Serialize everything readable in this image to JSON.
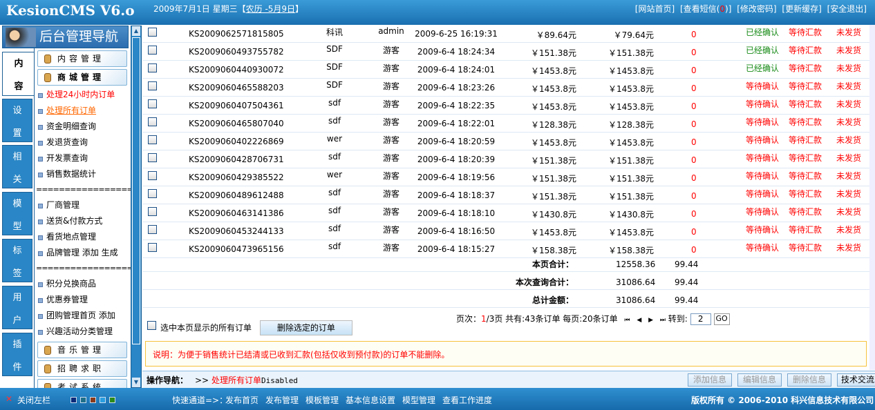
{
  "header": {
    "logo": "KesionCMS V6.o",
    "date": "2009年7月1日 星期三【",
    "lunar": "农历 -5月9日",
    "date_end": "】",
    "links": [
      {
        "pre": "[网站首页]"
      },
      {
        "pre": "[查看短信(",
        "count": "0",
        "post": ")]"
      },
      {
        "pre": "[修改密码]"
      },
      {
        "pre": "[更新缓存]"
      },
      {
        "pre": "[安全退出]"
      }
    ]
  },
  "sidebar": {
    "title": "后台管理导航",
    "tabs": [
      {
        "l1": "内",
        "l2": "容"
      },
      {
        "l1": "设",
        "l2": "置"
      },
      {
        "l1": "相",
        "l2": "关"
      },
      {
        "l1": "模",
        "l2": "型"
      },
      {
        "l1": "标",
        "l2": "签"
      },
      {
        "l1": "用",
        "l2": "户"
      },
      {
        "l1": "插",
        "l2": "件"
      }
    ],
    "groups": [
      "内容管理",
      "商城管理",
      "音乐管理",
      "招聘求职",
      "考试系统"
    ],
    "items": [
      "处理24小时内订单",
      "处理所有订单",
      "资金明细查询",
      "发退货查询",
      "开发票查询",
      "销售数据统计",
      "===================",
      "厂商管理",
      "送货&付款方式",
      "看货地点管理",
      "品牌管理 添加 生成",
      "===================",
      "积分兑换商品",
      "优惠券管理",
      "团购管理首页 添加",
      "兴趣活动分类管理"
    ]
  },
  "orders": [
    {
      "id": "KS2009062571815805",
      "buyer": "科讯",
      "user": "admin",
      "time": "2009-6-25 16:19:31",
      "amount": "￥89.64元",
      "paid": "￥79.64元",
      "points": "0",
      "confirm": "已经确认",
      "payment": "等待汇款",
      "ship": "未发货"
    },
    {
      "id": "KS2009060493755782",
      "buyer": "SDF",
      "user": "游客",
      "time": "2009-6-4 18:24:34",
      "amount": "￥151.38元",
      "paid": "￥151.38元",
      "points": "0",
      "confirm": "已经确认",
      "payment": "等待汇款",
      "ship": "未发货"
    },
    {
      "id": "KS2009060440930072",
      "buyer": "SDF",
      "user": "游客",
      "time": "2009-6-4 18:24:01",
      "amount": "￥1453.8元",
      "paid": "￥1453.8元",
      "points": "0",
      "confirm": "已经确认",
      "payment": "等待汇款",
      "ship": "未发货"
    },
    {
      "id": "KS2009060465588203",
      "buyer": "SDF",
      "user": "游客",
      "time": "2009-6-4 18:23:26",
      "amount": "￥1453.8元",
      "paid": "￥1453.8元",
      "points": "0",
      "confirm": "等待确认",
      "payment": "等待汇款",
      "ship": "未发货"
    },
    {
      "id": "KS2009060407504361",
      "buyer": "sdf",
      "user": "游客",
      "time": "2009-6-4 18:22:35",
      "amount": "￥1453.8元",
      "paid": "￥1453.8元",
      "points": "0",
      "confirm": "等待确认",
      "payment": "等待汇款",
      "ship": "未发货"
    },
    {
      "id": "KS2009060465807040",
      "buyer": "sdf",
      "user": "游客",
      "time": "2009-6-4 18:22:01",
      "amount": "￥128.38元",
      "paid": "￥128.38元",
      "points": "0",
      "confirm": "等待确认",
      "payment": "等待汇款",
      "ship": "未发货"
    },
    {
      "id": "KS2009060402226869",
      "buyer": "wer",
      "user": "游客",
      "time": "2009-6-4 18:20:59",
      "amount": "￥1453.8元",
      "paid": "￥1453.8元",
      "points": "0",
      "confirm": "等待确认",
      "payment": "等待汇款",
      "ship": "未发货"
    },
    {
      "id": "KS2009060428706731",
      "buyer": "sdf",
      "user": "游客",
      "time": "2009-6-4 18:20:39",
      "amount": "￥151.38元",
      "paid": "￥151.38元",
      "points": "0",
      "confirm": "等待确认",
      "payment": "等待汇款",
      "ship": "未发货"
    },
    {
      "id": "KS2009060429385522",
      "buyer": "wer",
      "user": "游客",
      "time": "2009-6-4 18:19:56",
      "amount": "￥151.38元",
      "paid": "￥151.38元",
      "points": "0",
      "confirm": "等待确认",
      "payment": "等待汇款",
      "ship": "未发货"
    },
    {
      "id": "KS2009060489612488",
      "buyer": "sdf",
      "user": "游客",
      "time": "2009-6-4 18:18:37",
      "amount": "￥151.38元",
      "paid": "￥151.38元",
      "points": "0",
      "confirm": "等待确认",
      "payment": "等待汇款",
      "ship": "未发货"
    },
    {
      "id": "KS2009060463141386",
      "buyer": "sdf",
      "user": "游客",
      "time": "2009-6-4 18:18:10",
      "amount": "￥1430.8元",
      "paid": "￥1430.8元",
      "points": "0",
      "confirm": "等待确认",
      "payment": "等待汇款",
      "ship": "未发货"
    },
    {
      "id": "KS2009060453244133",
      "buyer": "sdf",
      "user": "游客",
      "time": "2009-6-4 18:16:50",
      "amount": "￥1453.8元",
      "paid": "￥1453.8元",
      "points": "0",
      "confirm": "等待确认",
      "payment": "等待汇款",
      "ship": "未发货"
    },
    {
      "id": "KS2009060473965156",
      "buyer": "sdf",
      "user": "游客",
      "time": "2009-6-4 18:15:27",
      "amount": "￥158.38元",
      "paid": "￥158.38元",
      "points": "0",
      "confirm": "等待确认",
      "payment": "等待汇款",
      "ship": "未发货"
    }
  ],
  "totals": [
    {
      "label": "本页合计：",
      "amount": "12558.36",
      "paid": "99.44"
    },
    {
      "label": "本次查询合计：",
      "amount": "31086.64",
      "paid": "99.44"
    },
    {
      "label": "总计金额：",
      "amount": "31086.64",
      "paid": "99.44"
    }
  ],
  "pagination": {
    "prefix": "页次：",
    "current": "1",
    "suffix": "/3页 共有:43条订单 每页:20条订单",
    "goto_label": "转到:",
    "goto_value": "2",
    "go": "GO"
  },
  "select_all_label": "选中本页显示的所有订单",
  "delete_selected": "删除选定的订单",
  "note": "说明：为便于销售统计已结清或已收到汇款(包括仅收到预付款)的订单不能删除。",
  "opbar": {
    "label": "操作导航：",
    "sep": ">>",
    "current": "处理所有订单",
    "status": "Disabled",
    "buttons": [
      "添加信息",
      "编辑信息",
      "删除信息",
      "技术交流"
    ]
  },
  "footer": {
    "close": "关闭左栏",
    "swatches": [
      "#0a2a7a",
      "#1e6f8a",
      "#8a3a1a",
      "#2a9ee0",
      "#2a8a1a"
    ],
    "quick": "快速通道=>：",
    "links": [
      "发布首页",
      "发布管理",
      "模板管理",
      "基本信息设置",
      "模型管理",
      "查看工作进度"
    ],
    "copyright": "版权所有 © 2006-2010 科兴信息技术有限公司"
  }
}
